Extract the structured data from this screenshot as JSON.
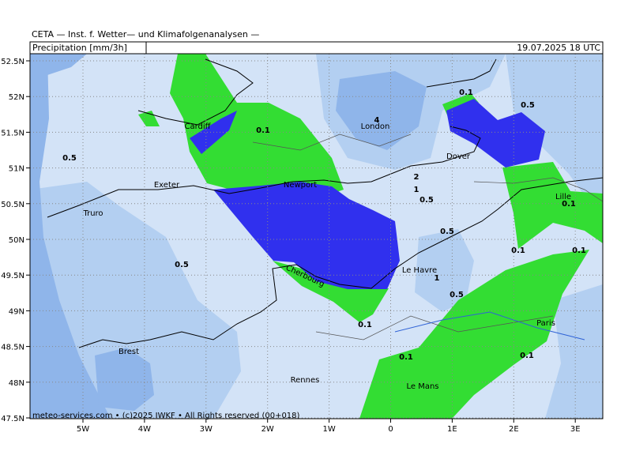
{
  "header": {
    "title": "CETA — Inst. f. Wetter— und Klimafolgenanalysen —",
    "field": "Precipitation [mm/3h]",
    "valid": "19.07.2025 18 UTC"
  },
  "map": {
    "lat_labels": [
      "52.5N",
      "52N",
      "51.5N",
      "51N",
      "50.5N",
      "50N",
      "49.5N",
      "49N",
      "48.5N",
      "48N",
      "47.5N"
    ],
    "lon_labels": [
      "5W",
      "4W",
      "3W",
      "2W",
      "1W",
      "0",
      "1E",
      "2E",
      "3E"
    ],
    "places": [
      "Cardiff",
      "London",
      "Dover",
      "Exeter",
      "Newport",
      "Lille",
      "Truro",
      "Le Havre",
      "Cherbourg",
      "Paris",
      "Brest",
      "Rennes",
      "Le Mans"
    ],
    "contour_labels": [
      "0.1",
      "0.1",
      "0.5",
      "0.5",
      "2",
      "1",
      "0.5",
      "4",
      "0.1",
      "0.5",
      "0.1",
      "0.1",
      "0.5",
      "1",
      "0.5",
      "0.1",
      "0.1",
      "0.1"
    ],
    "credit": "meteo-services.com • (c)2025 IWKF • All Rights reserved (00+018)"
  }
}
